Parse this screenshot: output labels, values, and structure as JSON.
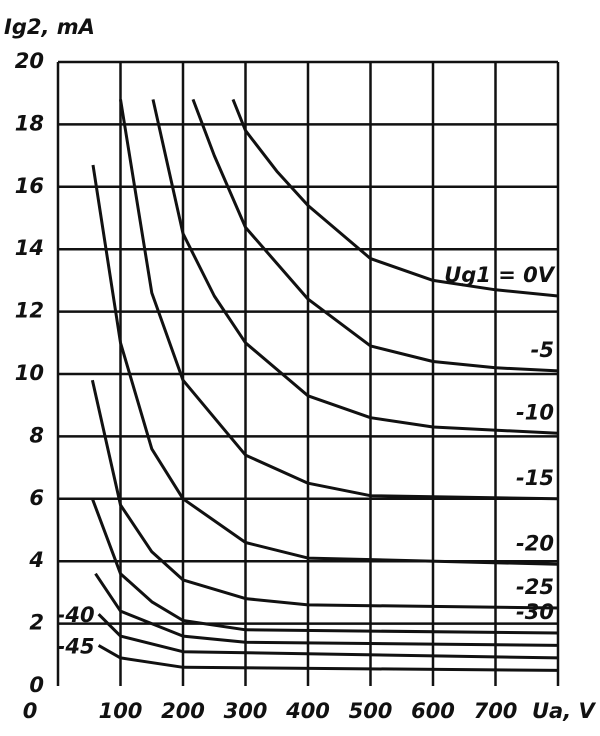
{
  "chart_data": {
    "type": "line",
    "y_axis_label": "Ig2, mA",
    "x_axis_label": "Ua, V",
    "xlim": [
      0,
      800
    ],
    "ylim": [
      0,
      20
    ],
    "xticks": [
      0,
      100,
      200,
      300,
      400,
      500,
      600,
      700
    ],
    "yticks": [
      0,
      2,
      4,
      6,
      8,
      10,
      12,
      14,
      16,
      18,
      20
    ],
    "grid": true,
    "color": "#111111",
    "series": [
      {
        "name": "Ug1 = 0V",
        "x": [
          280,
          300,
          350,
          400,
          500,
          600,
          700,
          800
        ],
        "values": [
          18.8,
          17.8,
          16.5,
          15.4,
          13.7,
          13.0,
          12.7,
          12.5
        ]
      },
      {
        "name": "-5",
        "x": [
          216,
          250,
          300,
          400,
          500,
          600,
          700,
          800
        ],
        "values": [
          18.8,
          17.0,
          14.7,
          12.4,
          10.9,
          10.4,
          10.2,
          10.1
        ]
      },
      {
        "name": "-10",
        "x": [
          152,
          200,
          250,
          300,
          400,
          500,
          600,
          800
        ],
        "values": [
          18.8,
          14.5,
          12.5,
          11.0,
          9.3,
          8.6,
          8.3,
          8.1
        ]
      },
      {
        "name": "-15",
        "x": [
          100,
          150,
          200,
          300,
          400,
          500,
          800
        ],
        "values": [
          18.8,
          12.6,
          9.8,
          7.4,
          6.5,
          6.1,
          6.0
        ]
      },
      {
        "name": "-20",
        "x": [
          56,
          100,
          150,
          200,
          300,
          400,
          800
        ],
        "values": [
          16.7,
          11.0,
          7.6,
          6.0,
          4.6,
          4.1,
          3.9
        ]
      },
      {
        "name": "-25",
        "x": [
          55,
          100,
          150,
          200,
          300,
          400,
          800
        ],
        "values": [
          9.8,
          5.8,
          4.3,
          3.4,
          2.8,
          2.6,
          2.5
        ]
      },
      {
        "name": "-30",
        "x": [
          55,
          100,
          150,
          200,
          300,
          800
        ],
        "values": [
          6.0,
          3.6,
          2.7,
          2.1,
          1.8,
          1.7
        ]
      },
      {
        "x": [
          60,
          100,
          200,
          300,
          800
        ],
        "values": [
          3.6,
          2.4,
          1.6,
          1.4,
          1.3
        ]
      },
      {
        "name": "-40",
        "label_at": "start",
        "x": [
          65,
          100,
          200,
          800
        ],
        "values": [
          2.3,
          1.6,
          1.1,
          0.9
        ]
      },
      {
        "name": "-45",
        "label_at": "start",
        "x": [
          65,
          100,
          200,
          800
        ],
        "values": [
          1.3,
          0.9,
          0.6,
          0.5
        ]
      }
    ]
  }
}
